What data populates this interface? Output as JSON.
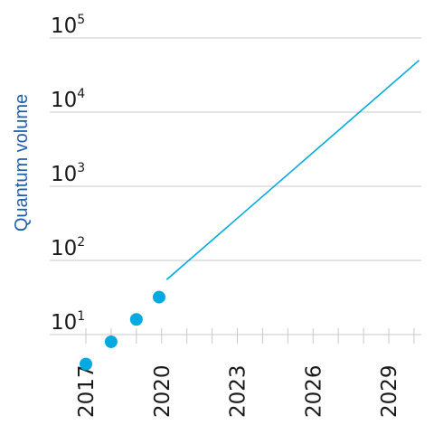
{
  "chart_data": {
    "type": "line",
    "ylabel": "Quantum volume",
    "yscale": "log",
    "ylim": [
      1,
      100000
    ],
    "xlim": [
      2016.7,
      2030.4
    ],
    "y_ticks": [
      {
        "base": "10",
        "exp": "1",
        "value": 10
      },
      {
        "base": "10",
        "exp": "2",
        "value": 100
      },
      {
        "base": "10",
        "exp": "3",
        "value": 1000
      },
      {
        "base": "10",
        "exp": "4",
        "value": 10000
      },
      {
        "base": "10",
        "exp": "5",
        "value": 100000
      }
    ],
    "x_ticks": [
      2017,
      2018,
      2019,
      2020,
      2021,
      2022,
      2023,
      2024,
      2025,
      2026,
      2027,
      2028,
      2029,
      2030
    ],
    "x_tick_labels": [
      {
        "value": 2017,
        "label": "2017"
      },
      {
        "value": 2020,
        "label": "2020"
      },
      {
        "value": 2023,
        "label": "2023"
      },
      {
        "value": 2026,
        "label": "2026"
      },
      {
        "value": 2029,
        "label": "2029"
      }
    ],
    "grid": true,
    "series": [
      {
        "kind": "scatter",
        "x": [
          2017,
          2018,
          2019,
          2019.9
        ],
        "y": [
          4,
          8,
          16,
          32
        ]
      },
      {
        "kind": "line",
        "x": [
          2020.2,
          2030.2
        ],
        "y": [
          55,
          50000
        ]
      }
    ],
    "colors": {
      "accent": "#00a9e0",
      "label": "#1f5fa8",
      "grid": "#c8c8c8",
      "text": "#1a1a1a"
    }
  }
}
